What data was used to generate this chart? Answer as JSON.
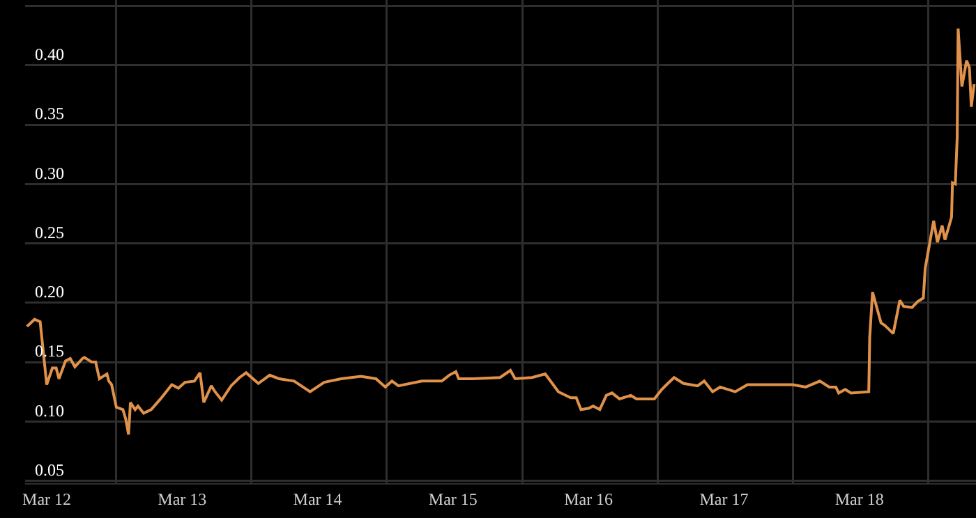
{
  "chart_data": {
    "type": "line",
    "x": [
      "--03-11T20:30",
      "--03-11T21:50",
      "--03-11T22:50",
      "--03-12T00:00",
      "--03-12T01:00",
      "--03-12T01:40",
      "--03-12T02:10",
      "--03-12T03:20",
      "--03-12T04:10",
      "--03-12T05:00",
      "--03-12T06:20",
      "--03-12T06:40",
      "--03-12T08:00",
      "--03-12T08:40",
      "--03-12T09:20",
      "--03-12T10:40",
      "--03-12T11:00",
      "--03-12T11:30",
      "--03-12T12:20",
      "--03-12T13:30",
      "--03-12T14:00",
      "--03-12T14:30",
      "--03-12T14:50",
      "--03-12T15:40",
      "--03-12T16:10",
      "--03-12T17:10",
      "--03-12T18:30",
      "--03-12T20:10",
      "--03-12T22:10",
      "--03-12T23:20",
      "--03-13T00:30",
      "--03-13T02:10",
      "--03-13T03:10",
      "--03-13T03:50",
      "--03-13T05:10",
      "--03-13T05:50",
      "--03-13T07:00",
      "--03-13T08:40",
      "--03-13T10:10",
      "--03-13T11:20",
      "--03-13T13:30",
      "--03-13T15:30",
      "--03-13T17:10",
      "--03-13T19:50",
      "--03-13T22:40",
      "--03-14T01:10",
      "--03-14T04:10",
      "--03-14T07:40",
      "--03-14T10:20",
      "--03-14T12:00",
      "--03-14T13:10",
      "--03-14T14:20",
      "--03-14T18:30",
      "--03-14T22:00",
      "--03-14T23:20",
      "--03-15T00:30",
      "--03-15T01:00",
      "--03-15T03:30",
      "--03-15T08:20",
      "--03-15T10:10",
      "--03-15T11:00",
      "--03-15T14:00",
      "--03-15T16:20",
      "--03-15T18:40",
      "--03-15T20:50",
      "--03-15T21:50",
      "--03-15T22:40",
      "--03-16T00:00",
      "--03-16T00:50",
      "--03-16T02:00",
      "--03-16T03:10",
      "--03-16T04:10",
      "--03-16T05:30",
      "--03-16T07:30",
      "--03-16T08:30",
      "--03-16T11:40",
      "--03-16T13:00",
      "--03-16T13:50",
      "--03-16T15:10",
      "--03-16T16:50",
      "--03-16T19:20",
      "--03-16T20:30",
      "--03-16T22:00",
      "--03-16T23:20",
      "--03-17T02:00",
      "--03-17T04:10",
      "--03-17T06:50",
      "--03-17T12:10",
      "--03-17T14:30",
      "--03-17T17:00",
      "--03-17T18:40",
      "--03-17T19:50",
      "--03-17T20:20",
      "--03-17T21:30",
      "--03-17T22:30",
      "--03-18T01:40",
      "--03-18T01:50",
      "--03-18T02:20",
      "--03-18T03:50",
      "--03-18T04:30",
      "--03-18T06:00",
      "--03-18T07:10",
      "--03-18T07:50",
      "--03-18T09:20",
      "--03-18T10:20",
      "--03-18T11:20",
      "--03-18T11:40",
      "--03-18T13:10",
      "--03-18T13:50",
      "--03-18T14:40",
      "--03-18T15:10",
      "--03-18T16:20",
      "--03-18T16:30",
      "--03-18T17:00",
      "--03-18T17:20",
      "--03-18T17:30",
      "--03-18T18:10",
      "--03-18T19:00",
      "--03-18T19:30",
      "--03-18T19:50",
      "--03-18T20:20"
    ],
    "series": [
      {
        "color": "#e0914a",
        "values": [
          0.18,
          0.186,
          0.184,
          0.131,
          0.145,
          0.145,
          0.136,
          0.151,
          0.153,
          0.146,
          0.153,
          0.154,
          0.15,
          0.15,
          0.136,
          0.14,
          0.134,
          0.131,
          0.112,
          0.11,
          0.102,
          0.089,
          0.116,
          0.11,
          0.113,
          0.107,
          0.11,
          0.119,
          0.131,
          0.128,
          0.133,
          0.134,
          0.141,
          0.116,
          0.13,
          0.125,
          0.118,
          0.13,
          0.137,
          0.141,
          0.132,
          0.139,
          0.136,
          0.134,
          0.125,
          0.133,
          0.136,
          0.138,
          0.136,
          0.129,
          0.134,
          0.13,
          0.134,
          0.134,
          0.139,
          0.142,
          0.136,
          0.136,
          0.137,
          0.143,
          0.136,
          0.137,
          0.14,
          0.125,
          0.12,
          0.12,
          0.11,
          0.111,
          0.113,
          0.11,
          0.122,
          0.124,
          0.119,
          0.122,
          0.119,
          0.119,
          0.127,
          0.131,
          0.137,
          0.132,
          0.13,
          0.134,
          0.125,
          0.129,
          0.125,
          0.131,
          0.131,
          0.131,
          0.129,
          0.134,
          0.129,
          0.129,
          0.124,
          0.127,
          0.124,
          0.125,
          0.171,
          0.209,
          0.183,
          0.181,
          0.174,
          0.202,
          0.197,
          0.196,
          0.201,
          0.204,
          0.229,
          0.269,
          0.251,
          0.265,
          0.253,
          0.272,
          0.301,
          0.3,
          0.339,
          0.431,
          0.382,
          0.404,
          0.398,
          0.365,
          0.384
        ]
      }
    ],
    "xlim": [
      "--03-11T20:10",
      "--03-18T20:40"
    ],
    "xticks": [
      {
        "value": "--03-12",
        "label": "Mar 12"
      },
      {
        "value": "--03-13",
        "label": "Mar 13"
      },
      {
        "value": "--03-14",
        "label": "Mar 14"
      },
      {
        "value": "--03-15",
        "label": "Mar 15"
      },
      {
        "value": "--03-16",
        "label": "Mar 16"
      },
      {
        "value": "--03-17",
        "label": "Mar 17"
      },
      {
        "value": "--03-18",
        "label": "Mar 18"
      },
      {
        "value": "--03-12T12:15",
        "label": null
      },
      {
        "value": "--03-13T12:15",
        "label": null
      },
      {
        "value": "--03-14T12:15",
        "label": null
      },
      {
        "value": "--03-15T12:15",
        "label": null
      },
      {
        "value": "--03-16T12:15",
        "label": null
      },
      {
        "value": "--03-17T12:15",
        "label": null
      },
      {
        "value": "--03-18T12:15",
        "label": null
      }
    ],
    "ylim": [
      0.048,
      0.455
    ],
    "yticks": [
      {
        "value": 0.05,
        "label": "0.05"
      },
      {
        "value": 0.1,
        "label": "0.10"
      },
      {
        "value": 0.15,
        "label": "0.15"
      },
      {
        "value": 0.2,
        "label": "0.20"
      },
      {
        "value": 0.25,
        "label": "0.25"
      },
      {
        "value": 0.3,
        "label": "0.30"
      },
      {
        "value": 0.35,
        "label": "0.35"
      },
      {
        "value": 0.4,
        "label": "0.40"
      },
      {
        "value": 0.45,
        "label": null
      }
    ],
    "grid": true,
    "marker": "none",
    "line_style": "solid"
  }
}
